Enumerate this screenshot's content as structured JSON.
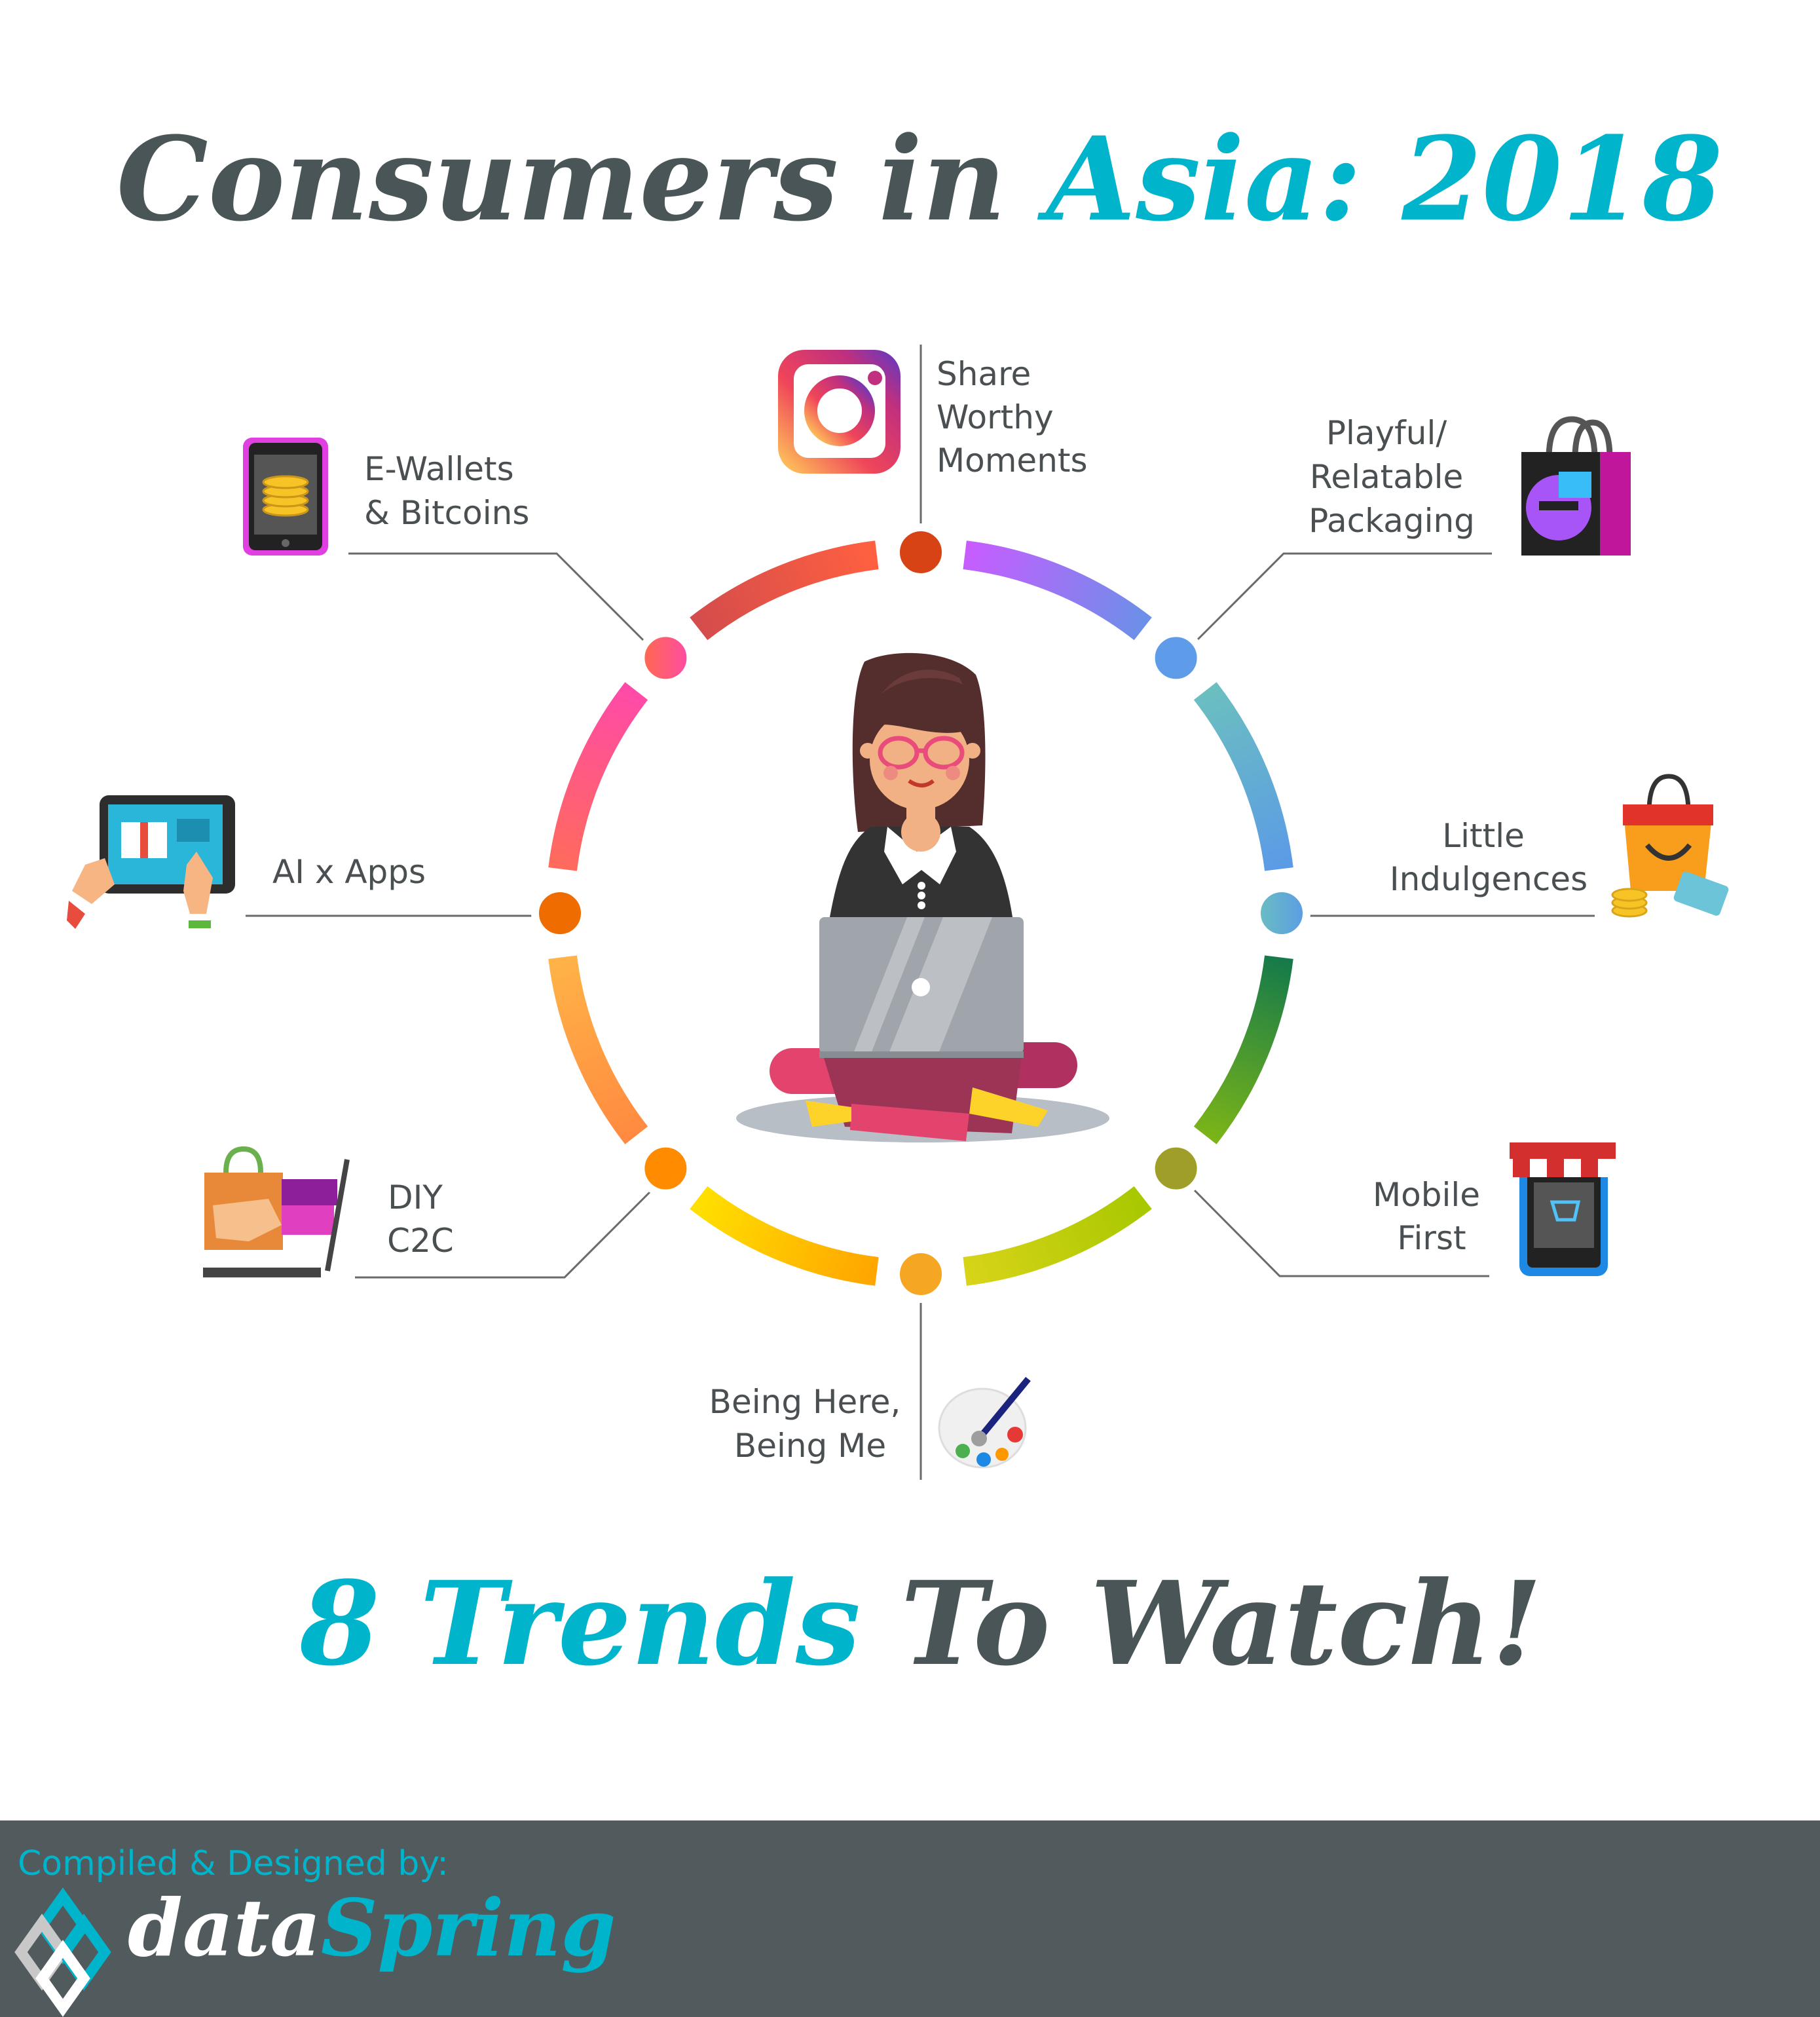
{
  "title": {
    "part1": "Consumers in ",
    "part2": "Asia: 2018"
  },
  "subtitle": {
    "part1": "8 Trends ",
    "part2": "To Watch!"
  },
  "trends": [
    {
      "lines": [
        "Share",
        "Worthy",
        "Moments"
      ],
      "icon": "instagram-icon",
      "node_color": "#d84315"
    },
    {
      "lines": [
        "Playful/",
        "Relatable",
        "Packaging"
      ],
      "icon": "shopping-bag-icon",
      "node_color": "#5e9be8"
    },
    {
      "lines": [
        "Little",
        "Indulgences"
      ],
      "icon": "gift-bag-coins-icon",
      "node_color": "#62aed3"
    },
    {
      "lines": [
        "Mobile",
        "First"
      ],
      "icon": "mobile-shop-icon",
      "node_color": "#9e9e28"
    },
    {
      "lines": [
        "Being Here,",
        "Being Me"
      ],
      "icon": "paint-palette-icon",
      "node_color": "#f5a623"
    },
    {
      "lines": [
        "DIY",
        "C2C"
      ],
      "icon": "laptop-shopping-bag-icon",
      "node_color": "#ff8c00"
    },
    {
      "lines": [
        "AI x Apps"
      ],
      "icon": "tablet-shopping-icon",
      "node_color": "#ef6c00"
    },
    {
      "lines": [
        "E-Wallets",
        "& Bitcoins"
      ],
      "icon": "phone-coins-icon",
      "node_color": "#ff5a8a"
    }
  ],
  "ring_colors": [
    [
      "#c85cff",
      "#6b90e8"
    ],
    [
      "#6bbfc0",
      "#5b9be6"
    ],
    [
      "#157a4a",
      "#7ab418"
    ],
    [
      "#a8c800",
      "#d8d418"
    ],
    [
      "#ffa500",
      "#ffe000"
    ],
    [
      "#ff8a40",
      "#ffb347"
    ],
    [
      "#ff6b5c",
      "#ff4aa8"
    ],
    [
      "#d44c4c",
      "#ff6040"
    ]
  ],
  "footer": {
    "credit": "Compiled & Designed by:",
    "brand_part1": "data",
    "brand_part2": "Spring"
  },
  "colors": {
    "accent": "#00b4cc",
    "dark": "#4a5558",
    "footer_bg": "#515b5d"
  }
}
